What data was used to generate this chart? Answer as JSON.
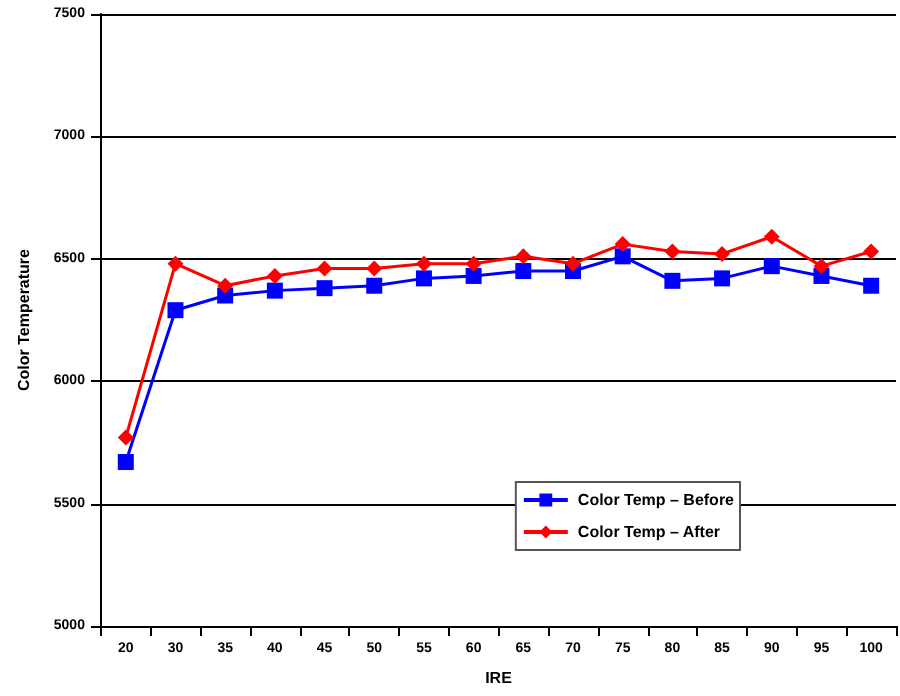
{
  "chart_data": {
    "type": "line",
    "xlabel": "IRE",
    "ylabel": "Color Temperature",
    "categories": [
      "20",
      "30",
      "35",
      "40",
      "45",
      "50",
      "55",
      "60",
      "65",
      "70",
      "75",
      "80",
      "85",
      "90",
      "95",
      "100"
    ],
    "series": [
      {
        "name": "Color Temp – Before",
        "color": "#0000ff",
        "marker": "square",
        "values": [
          5670,
          6290,
          6350,
          6370,
          6380,
          6390,
          6420,
          6430,
          6450,
          6450,
          6510,
          6410,
          6420,
          6470,
          6430,
          6390
        ]
      },
      {
        "name": "Color Temp – After",
        "color": "#ff0000",
        "marker": "diamond",
        "values": [
          5770,
          6480,
          6390,
          6430,
          6460,
          6460,
          6480,
          6480,
          6510,
          6480,
          6560,
          6530,
          6520,
          6590,
          6470,
          6530
        ]
      }
    ],
    "ylim": [
      5000,
      7500
    ],
    "yticks": [
      5000,
      5500,
      6000,
      6500,
      7000,
      7500
    ],
    "grid": "y",
    "legend": "bottom right"
  }
}
